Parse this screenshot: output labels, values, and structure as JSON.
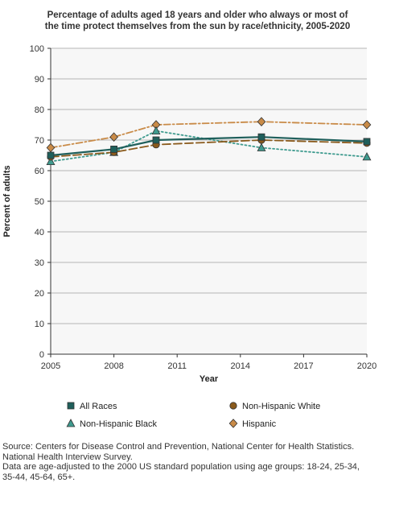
{
  "chart_data": {
    "type": "line",
    "title_line1": "Percentage of adults aged 18 years and older who always or most of",
    "title_line2": "the time protect themselves from the sun by race/ethnicity, 2005-2020",
    "xlabel": "Year",
    "ylabel": "Percent of adults",
    "x_ticks": [
      "2005",
      "2008",
      "2011",
      "2014",
      "2017",
      "2020"
    ],
    "y_ticks": [
      "0",
      "10",
      "20",
      "30",
      "40",
      "50",
      "60",
      "70",
      "80",
      "90",
      "100"
    ],
    "xlim": [
      2005,
      2020
    ],
    "ylim": [
      0,
      100
    ],
    "grid": "horizontal",
    "legend_position": "bottom",
    "x": [
      2005,
      2008,
      2010,
      2015,
      2020
    ],
    "series": [
      {
        "name": "All Races",
        "values": [
          65,
          67,
          70,
          71,
          69.5
        ],
        "color": "#1f5f5b",
        "marker": "square",
        "dash": "solid"
      },
      {
        "name": "Non-Hispanic White",
        "values": [
          64.5,
          66,
          68.5,
          70,
          69
        ],
        "color": "#8a5a1c",
        "marker": "circle",
        "dash": "long-dash"
      },
      {
        "name": "Non-Hispanic Black",
        "values": [
          63,
          66,
          73,
          67.5,
          64.5
        ],
        "color": "#3f9b8f",
        "marker": "triangle",
        "dash": "dotted"
      },
      {
        "name": "Hispanic",
        "values": [
          67.5,
          71,
          75,
          76,
          75
        ],
        "color": "#c98b48",
        "marker": "diamond",
        "dash": "dash-dot"
      }
    ]
  },
  "notes": {
    "line1": "Source: Centers for Disease Control and Prevention, National Center for Health Statistics.",
    "line2": "National Health Interview Survey.",
    "line3": "Data are age-adjusted to the 2000 US standard population using age groups: 18-24, 25-34,",
    "line4": "35-44, 45-64, 65+."
  }
}
